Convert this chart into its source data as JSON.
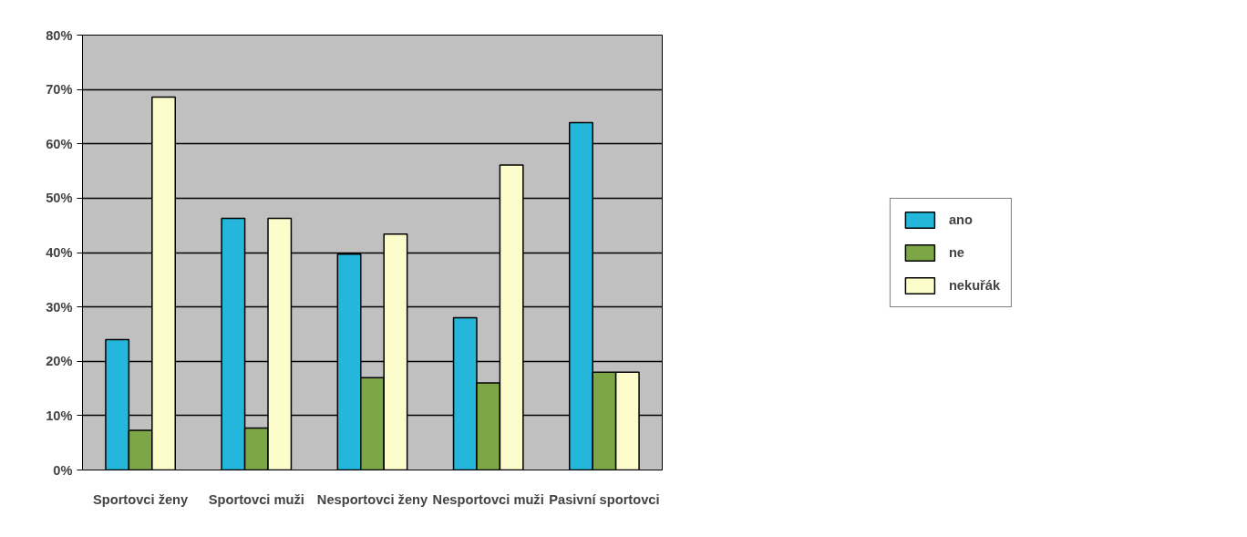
{
  "chart_data": {
    "type": "bar",
    "categories": [
      "Sportovci ženy",
      "Sportovci muži",
      "Nesportovci ženy",
      "Nesportovci muži",
      "Pasivní sportovci"
    ],
    "series": [
      {
        "name": "ano",
        "color": "#25b6db",
        "values": [
          24.0,
          46.3,
          39.7,
          28.0,
          63.9
        ]
      },
      {
        "name": "ne",
        "color": "#7da647",
        "values": [
          7.3,
          7.7,
          17.0,
          16.0,
          18.0
        ]
      },
      {
        "name": "nekuřák",
        "color": "#fdfccb",
        "values": [
          68.6,
          46.3,
          43.4,
          56.1,
          18.0
        ]
      }
    ],
    "ylim": [
      0,
      80
    ],
    "yticks": [
      {
        "value": 0,
        "label": "0%"
      },
      {
        "value": 10,
        "label": "10%"
      },
      {
        "value": 20,
        "label": "20%"
      },
      {
        "value": 30,
        "label": "30%"
      },
      {
        "value": 40,
        "label": "40%"
      },
      {
        "value": 50,
        "label": "50%"
      },
      {
        "value": 60,
        "label": "60%"
      },
      {
        "value": 70,
        "label": "70%"
      },
      {
        "value": 80,
        "label": "80%"
      }
    ],
    "grid": "y",
    "legend": "right"
  }
}
